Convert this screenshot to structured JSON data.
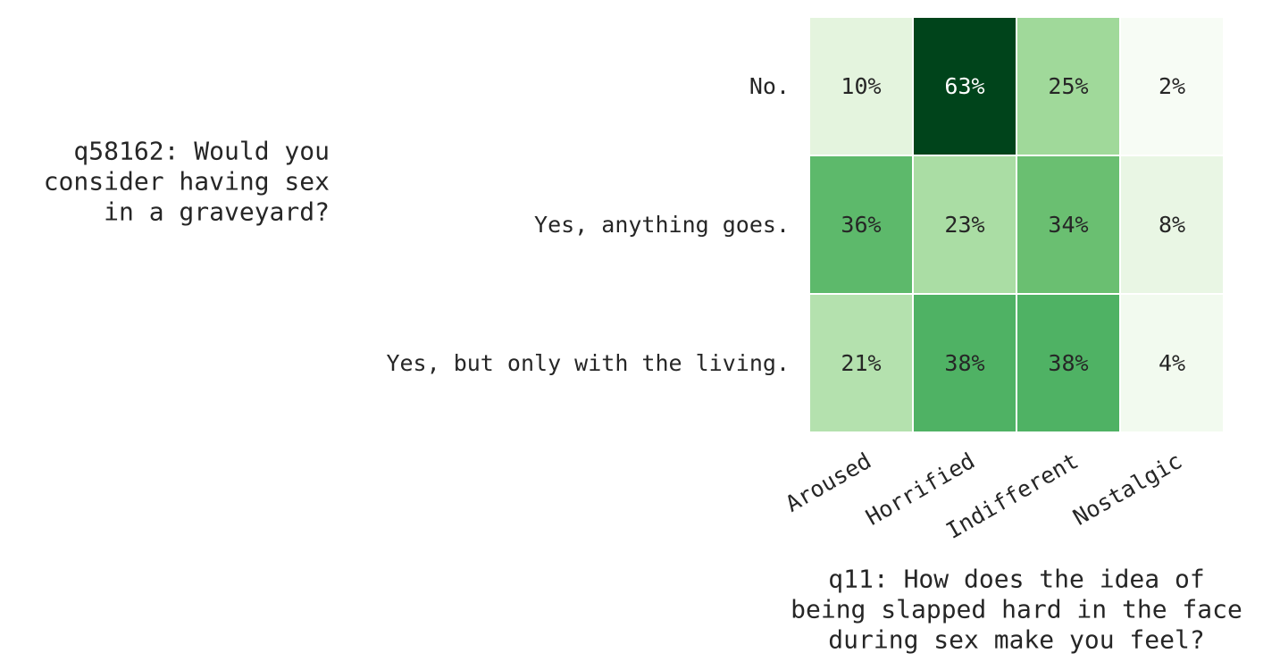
{
  "chart_data": {
    "type": "heatmap",
    "title": "",
    "xlabel_lines": [
      "q11: How does the idea of",
      "being slapped hard in the face",
      "during sex make you feel?"
    ],
    "ylabel_lines": [
      "q58162: Would you",
      "consider having sex",
      "in a graveyard?"
    ],
    "x_categories": [
      "Aroused",
      "Horrified",
      "Indifferent",
      "Nostalgic"
    ],
    "y_categories": [
      "No.",
      "Yes, anything goes.",
      "Yes, but only with the living."
    ],
    "values": [
      [
        10,
        63,
        25,
        2
      ],
      [
        36,
        23,
        34,
        8
      ],
      [
        21,
        38,
        38,
        4
      ]
    ],
    "value_labels": [
      [
        "10%",
        "63%",
        "25%",
        "2%"
      ],
      [
        "36%",
        "23%",
        "34%",
        "8%"
      ],
      [
        "21%",
        "38%",
        "38%",
        "4%"
      ]
    ],
    "value_range": [
      2,
      63
    ],
    "colormap": "Greens",
    "grid": false,
    "legend": "none"
  }
}
